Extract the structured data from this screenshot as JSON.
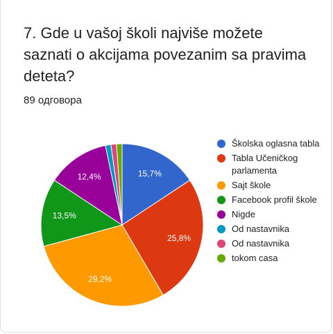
{
  "question": "7. Gde u vašoj školi najviše možete saznati o akcijama povezanim sa pravima deteta?",
  "responses": "89 одговора",
  "chart_data": {
    "type": "pie",
    "categories": [
      "Školska oglasna tabla",
      "Tabla Učeničkog parlamenta",
      "Sajt škole",
      "Facebook profil škole",
      "Nigde",
      "Od nastavnika",
      "Od nastavnika",
      "tokom casa"
    ],
    "values": [
      15.7,
      25.8,
      29.2,
      13.5,
      12.4,
      1.1,
      1.1,
      1.1
    ],
    "labels": [
      "15,7%",
      "25,8%",
      "29,2%",
      "13,5%",
      "12,4%",
      "",
      "",
      ""
    ],
    "colors": [
      "#3366cc",
      "#dc3912",
      "#ff9900",
      "#109618",
      "#990099",
      "#0099c6",
      "#dd4477",
      "#66aa00"
    ],
    "start_angle_deg": 90,
    "direction": "clockwise",
    "legend_position": "right"
  }
}
